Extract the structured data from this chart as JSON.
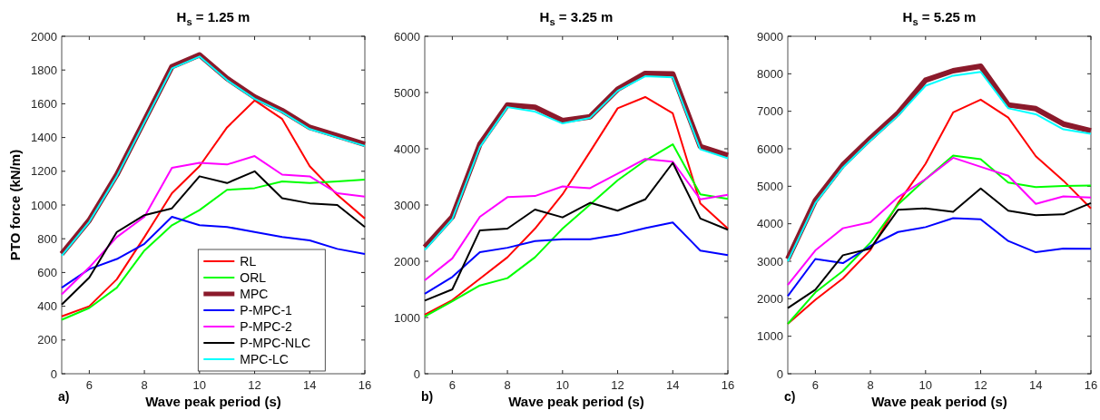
{
  "chart_data": [
    {
      "type": "line",
      "title": "H$_{s}$ = 1.25 m",
      "xlabel": "Wave peak period (s)",
      "ylabel": "PTO force (kN/m)",
      "annotations": [
        "a)"
      ],
      "x": [
        5,
        6,
        7,
        8,
        9,
        10,
        11,
        12,
        13,
        14,
        15,
        16
      ],
      "xlim": [
        5,
        16
      ],
      "xticks": [
        6,
        8,
        10,
        12,
        14,
        16
      ],
      "ylim": [
        0,
        2000
      ],
      "yticks": [
        0,
        200,
        400,
        600,
        800,
        1000,
        1200,
        1400,
        1600,
        1800,
        2000
      ],
      "grid": false,
      "legend": "bottom",
      "series": [
        {
          "name": "RL",
          "color": "#ff0000",
          "values": [
            340,
            400,
            560,
            810,
            1070,
            1230,
            1460,
            1620,
            1510,
            1230,
            1060,
            920
          ]
        },
        {
          "name": "ORL",
          "color": "#00ff00",
          "values": [
            320,
            390,
            510,
            730,
            880,
            970,
            1090,
            1100,
            1140,
            1130,
            1140,
            1150
          ]
        },
        {
          "name": "MPC",
          "color": "#8b1a2b",
          "values": [
            710,
            910,
            1180,
            1500,
            1820,
            1890,
            1750,
            1640,
            1560,
            1460,
            1410,
            1360
          ]
        },
        {
          "name": "P-MPC-1",
          "color": "#0000ff",
          "values": [
            510,
            620,
            680,
            770,
            930,
            880,
            870,
            840,
            810,
            790,
            740,
            710
          ]
        },
        {
          "name": "P-MPC-2",
          "color": "#ff00ff",
          "values": [
            470,
            630,
            810,
            930,
            1220,
            1250,
            1240,
            1290,
            1180,
            1170,
            1070,
            1050
          ]
        },
        {
          "name": "P-MPC-NLC",
          "color": "#000000",
          "values": [
            410,
            570,
            840,
            940,
            980,
            1170,
            1130,
            1200,
            1040,
            1010,
            1000,
            870
          ]
        },
        {
          "name": "MPC-LC",
          "color": "#00ffff",
          "values": [
            700,
            900,
            1170,
            1490,
            1810,
            1880,
            1740,
            1630,
            1550,
            1450,
            1400,
            1350
          ]
        }
      ]
    },
    {
      "type": "line",
      "title": "H$_{s}$ = 3.25 m",
      "xlabel": "Wave peak period (s)",
      "annotations": [
        "b)"
      ],
      "x": [
        5,
        6,
        7,
        8,
        9,
        10,
        11,
        12,
        13,
        14,
        15,
        16
      ],
      "xlim": [
        5,
        16
      ],
      "xticks": [
        6,
        8,
        10,
        12,
        14,
        16
      ],
      "ylim": [
        0,
        6000
      ],
      "yticks": [
        0,
        1000,
        2000,
        3000,
        4000,
        5000,
        6000
      ],
      "grid": false,
      "series": [
        {
          "color": "#ff0000",
          "values": [
            1050,
            1310,
            1690,
            2070,
            2580,
            3190,
            3950,
            4720,
            4920,
            4630,
            3030,
            2580
          ]
        },
        {
          "color": "#00ff00",
          "values": [
            1020,
            1290,
            1570,
            1700,
            2070,
            2580,
            3010,
            3440,
            3790,
            4080,
            3190,
            3110
          ]
        },
        {
          "color": "#8b1a2b",
          "values": [
            2250,
            2790,
            4080,
            4780,
            4740,
            4500,
            4570,
            5060,
            5340,
            5330,
            4040,
            3880
          ]
        },
        {
          "color": "#0000ff",
          "values": [
            1420,
            1720,
            2160,
            2240,
            2360,
            2390,
            2390,
            2470,
            2590,
            2690,
            2190,
            2110
          ]
        },
        {
          "color": "#ff00ff",
          "values": [
            1660,
            2050,
            2790,
            3140,
            3160,
            3330,
            3300,
            3560,
            3820,
            3770,
            3100,
            3180
          ]
        },
        {
          "color": "#000000",
          "values": [
            1300,
            1500,
            2550,
            2580,
            2920,
            2780,
            3040,
            2900,
            3100,
            3750,
            2760,
            2560
          ]
        },
        {
          "color": "#00ffff",
          "values": [
            2200,
            2750,
            4030,
            4740,
            4660,
            4450,
            4550,
            5030,
            5290,
            5270,
            3990,
            3830
          ]
        }
      ]
    },
    {
      "type": "line",
      "title": "H$_{s}$ = 5.25 m",
      "xlabel": "Wave peak period (s)",
      "annotations": [
        "c)"
      ],
      "x": [
        5,
        6,
        7,
        8,
        9,
        10,
        11,
        12,
        13,
        14,
        15,
        16
      ],
      "xlim": [
        5,
        16
      ],
      "xticks": [
        6,
        8,
        10,
        12,
        14,
        16
      ],
      "ylim": [
        0,
        9000
      ],
      "yticks": [
        0,
        1000,
        2000,
        3000,
        4000,
        5000,
        6000,
        7000,
        8000,
        9000
      ],
      "grid": false,
      "series": [
        {
          "color": "#ff0000",
          "values": [
            1330,
            1970,
            2540,
            3300,
            4550,
            5600,
            6970,
            7310,
            6830,
            5800,
            5150,
            4410
          ]
        },
        {
          "color": "#00ff00",
          "values": [
            1330,
            2170,
            2740,
            3500,
            4510,
            5190,
            5820,
            5720,
            5100,
            4980,
            5010,
            5020
          ]
        },
        {
          "color": "#8b1a2b",
          "values": [
            3060,
            4620,
            5570,
            6280,
            6950,
            7830,
            8080,
            8200,
            7170,
            7070,
            6660,
            6480
          ]
        },
        {
          "color": "#0000ff",
          "values": [
            2070,
            3060,
            2950,
            3410,
            3780,
            3910,
            4150,
            4120,
            3540,
            3240,
            3340,
            3330
          ]
        },
        {
          "color": "#ff00ff",
          "values": [
            2370,
            3290,
            3880,
            4040,
            4710,
            5190,
            5760,
            5520,
            5280,
            4530,
            4730,
            4700
          ]
        },
        {
          "color": "#000000",
          "values": [
            1750,
            2240,
            3160,
            3340,
            4370,
            4410,
            4320,
            4940,
            4350,
            4230,
            4250,
            4550
          ]
        },
        {
          "color": "#00ffff",
          "values": [
            3000,
            4550,
            5500,
            6220,
            6880,
            7680,
            7950,
            8050,
            7080,
            6920,
            6520,
            6400
          ]
        }
      ]
    }
  ]
}
